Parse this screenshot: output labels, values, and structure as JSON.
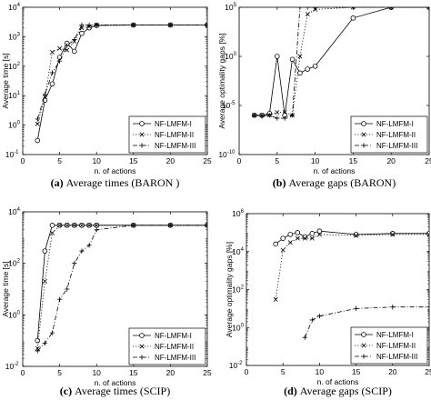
{
  "chart_data": [
    {
      "type": "line",
      "panel": "a",
      "caption_letter": "(a)",
      "caption": "Average times (BARON )",
      "xlabel": "n. of actions",
      "ylabel": "Average time [s]",
      "xlim": [
        0,
        25
      ],
      "ylim_log10": [
        -1,
        4
      ],
      "yscale": "log",
      "xticks": [
        "0",
        "5",
        "10",
        "15",
        "20",
        "25"
      ],
      "yticks": [
        {
          "base": "10",
          "exp": "-1"
        },
        {
          "base": "10",
          "exp": "0"
        },
        {
          "base": "10",
          "exp": "1"
        },
        {
          "base": "10",
          "exp": "2"
        },
        {
          "base": "10",
          "exp": "3"
        },
        {
          "base": "10",
          "exp": "4"
        }
      ],
      "legend_position": "bottom-right",
      "series": [
        {
          "name": "NF-LMFM-I",
          "style": "solid",
          "marker": "circle",
          "x": [
            2,
            3,
            4,
            5,
            6,
            7,
            8,
            9,
            10,
            15,
            20,
            25
          ],
          "y": [
            0.3,
            7,
            25,
            200,
            600,
            320,
            1300,
            2000,
            2400,
            2500,
            2500,
            2500
          ]
        },
        {
          "name": "NF-LMFM-II",
          "style": "dotted",
          "marker": "x",
          "x": [
            2,
            3,
            4,
            5,
            6,
            7,
            8,
            9,
            10,
            15,
            20,
            25
          ],
          "y": [
            1.1,
            9,
            300,
            400,
            350,
            700,
            2000,
            2200,
            2500,
            2500,
            2500,
            2500
          ]
        },
        {
          "name": "NF-LMFM-III",
          "style": "dashdot",
          "marker": "plus",
          "x": [
            2,
            3,
            4,
            5,
            6,
            7,
            8,
            9,
            10,
            15,
            20,
            25
          ],
          "y": [
            1.6,
            11,
            60,
            150,
            500,
            800,
            2500,
            2500,
            2500,
            2500,
            2500,
            2500
          ]
        }
      ]
    },
    {
      "type": "line",
      "panel": "b",
      "caption_letter": "(b)",
      "caption": "Average gaps (BARON)",
      "xlabel": "n. of actions",
      "ylabel": "Average optimality gaps [%]",
      "xlim": [
        0,
        25
      ],
      "ylim_log10": [
        -10,
        5
      ],
      "yscale": "log",
      "xticks": [
        "0",
        "5",
        "10",
        "15",
        "20",
        "25"
      ],
      "yticks": [
        {
          "base": "10",
          "exp": "-10"
        },
        {
          "base": "10",
          "exp": "-5"
        },
        {
          "base": "10",
          "exp": "0"
        },
        {
          "base": "10",
          "exp": "5"
        }
      ],
      "legend_position": "bottom-right",
      "series": [
        {
          "name": "NF-LMFM-I",
          "style": "solid",
          "marker": "circle",
          "x": [
            2,
            3,
            4,
            5,
            6,
            7,
            8,
            9,
            10,
            15,
            20,
            25
          ],
          "y": [
            1e-06,
            1e-06,
            1.5e-06,
            1,
            1e-06,
            0.5,
            0.02,
            0.05,
            0.1,
            8000,
            100000,
            100000
          ]
        },
        {
          "name": "NF-LMFM-II",
          "style": "dotted",
          "marker": "x",
          "x": [
            2,
            3,
            4,
            5,
            6,
            7,
            8,
            9,
            10,
            15,
            20,
            25
          ],
          "y": [
            1e-06,
            1e-06,
            1e-06,
            2e-06,
            2e-06,
            1e-06,
            1,
            20000,
            60000,
            100000,
            100000,
            100000
          ]
        },
        {
          "name": "NF-LMFM-III",
          "style": "dashdot",
          "marker": "plus",
          "x": [
            2,
            3,
            4,
            5,
            6,
            7,
            8,
            9,
            10,
            15,
            20,
            25
          ],
          "y": [
            1e-06,
            8e-07,
            1e-06,
            5e-07,
            5e-07,
            1e-06,
            100000,
            100000,
            100000,
            100000,
            100000,
            100000
          ]
        }
      ]
    },
    {
      "type": "line",
      "panel": "c",
      "caption_letter": "(c)",
      "caption": "Average times (SCIP)",
      "xlabel": "n. of actions",
      "ylabel": "Average time [s]",
      "xlim": [
        0,
        25
      ],
      "ylim_log10": [
        -2,
        4
      ],
      "yscale": "log",
      "xticks": [
        "0",
        "5",
        "10",
        "15",
        "20",
        "25"
      ],
      "yticks": [
        {
          "base": "10",
          "exp": "-2"
        },
        {
          "base": "10",
          "exp": "0"
        },
        {
          "base": "10",
          "exp": "2"
        },
        {
          "base": "10",
          "exp": "4"
        }
      ],
      "legend_position": "bottom-right",
      "series": [
        {
          "name": "NF-LMFM-I",
          "style": "solid",
          "marker": "circle",
          "x": [
            2,
            3,
            4,
            5,
            6,
            7,
            8,
            9,
            10,
            15,
            20,
            25
          ],
          "y": [
            0.1,
            300,
            3000,
            3000,
            3000,
            3000,
            3000,
            3000,
            3000,
            3000,
            3000,
            3000
          ]
        },
        {
          "name": "NF-LMFM-II",
          "style": "dotted",
          "marker": "x",
          "x": [
            2,
            3,
            4,
            5,
            6,
            7,
            8,
            9,
            10,
            15,
            20,
            25
          ],
          "y": [
            0.05,
            20,
            1500,
            3000,
            3000,
            3000,
            3000,
            3000,
            3000,
            3000,
            3000,
            3000
          ]
        },
        {
          "name": "NF-LMFM-III",
          "style": "dashdot",
          "marker": "plus",
          "x": [
            2,
            3,
            4,
            5,
            6,
            7,
            8,
            9,
            10,
            15,
            20,
            25
          ],
          "y": [
            0.04,
            0.08,
            0.2,
            4,
            10,
            100,
            300,
            500,
            2000,
            3000,
            3000,
            3000
          ]
        }
      ]
    },
    {
      "type": "line",
      "panel": "d",
      "caption_letter": "(d)",
      "caption": "Average gaps (SCIP)",
      "xlabel": "n. of actions",
      "ylabel": "Average optimality gaps [%]",
      "xlim": [
        0,
        25
      ],
      "ylim_log10": [
        -2,
        6
      ],
      "yscale": "log",
      "xticks": [
        "0",
        "5",
        "10",
        "15",
        "20",
        "25"
      ],
      "yticks": [
        {
          "base": "10",
          "exp": "-2"
        },
        {
          "base": "10",
          "exp": "0"
        },
        {
          "base": "10",
          "exp": "2"
        },
        {
          "base": "10",
          "exp": "4"
        },
        {
          "base": "10",
          "exp": "6"
        }
      ],
      "legend_position": "bottom-right",
      "series": [
        {
          "name": "NF-LMFM-I",
          "style": "solid",
          "marker": "circle",
          "x": [
            4,
            5,
            6,
            7,
            8,
            9,
            10,
            15,
            20,
            25
          ],
          "y": [
            25000,
            50000,
            80000,
            100000,
            60000,
            90000,
            120000,
            80000,
            90000,
            90000
          ]
        },
        {
          "name": "NF-LMFM-II",
          "style": "dotted",
          "marker": "x",
          "x": [
            4,
            5,
            6,
            7,
            8,
            9,
            10,
            15,
            20,
            25
          ],
          "y": [
            30,
            12000,
            30000,
            50000,
            50000,
            50000,
            80000,
            70000,
            80000,
            80000
          ]
        },
        {
          "name": "NF-LMFM-III",
          "style": "dashdot",
          "marker": "plus",
          "x": [
            8,
            9,
            10,
            15,
            20,
            25
          ],
          "y": [
            0.3,
            2.5,
            4,
            10,
            12,
            12
          ]
        }
      ]
    }
  ]
}
